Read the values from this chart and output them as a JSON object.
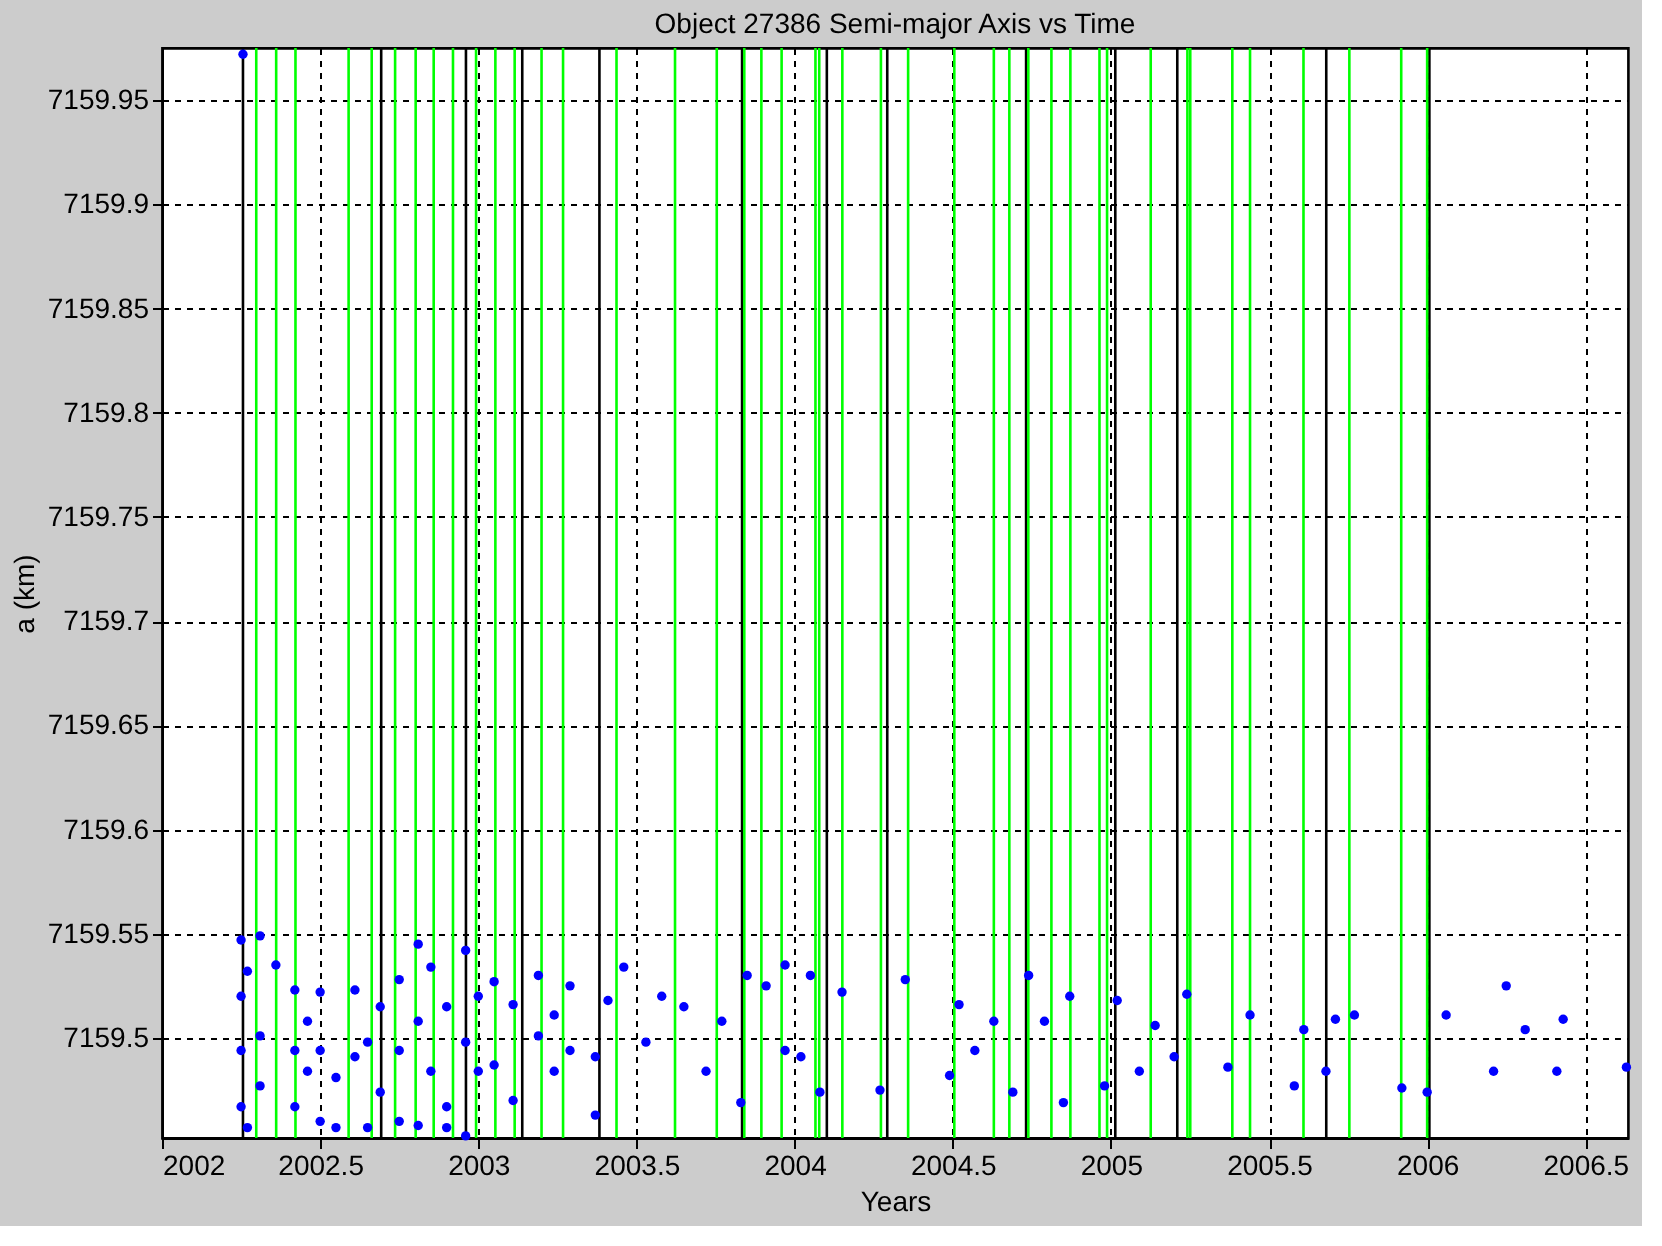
{
  "chart_data": {
    "type": "scatter",
    "title": "Object 27386 Semi-major Axis vs Time",
    "xlabel": "Years",
    "ylabel": "a (km)",
    "xlim": [
      2002,
      2006.635
    ],
    "xticks": [
      2002,
      2002.5,
      2003,
      2003.5,
      2004,
      2004.5,
      2005,
      2005.5,
      2006,
      2006.5
    ],
    "ylim": [
      7159.452,
      7159.975
    ],
    "yticks": [
      7159.5,
      7159.55,
      7159.6,
      7159.65,
      7159.7,
      7159.75,
      7159.8,
      7159.85,
      7159.9,
      7159.95
    ],
    "grid": true,
    "marker": "circle",
    "series": [
      {
        "color": "#0000ff",
        "x": [
          2002.256,
          2002.25,
          2002.25,
          2002.25,
          2002.25,
          2002.27,
          2002.27,
          2002.31,
          2002.31,
          2002.31,
          2002.36,
          2002.42,
          2002.42,
          2002.42,
          2002.46,
          2002.46,
          2002.5,
          2002.5,
          2002.5,
          2002.55,
          2002.55,
          2002.61,
          2002.61,
          2002.65,
          2002.65,
          2002.69,
          2002.69,
          2002.75,
          2002.75,
          2002.75,
          2002.81,
          2002.81,
          2002.81,
          2002.85,
          2002.85,
          2002.9,
          2002.9,
          2002.9,
          2002.96,
          2002.96,
          2002.96,
          2003.0,
          2003.0,
          2003.05,
          2003.05,
          2003.11,
          2003.11,
          2003.19,
          2003.19,
          2003.24,
          2003.24,
          2003.29,
          2003.29,
          2003.37,
          2003.37,
          2003.41,
          2003.46,
          2003.53,
          2003.58,
          2003.65,
          2003.72,
          2003.77,
          2003.83,
          2003.85,
          2003.91,
          2003.97,
          2003.97,
          2004.02,
          2004.05,
          2004.08,
          2004.15,
          2004.27,
          2004.35,
          2004.49,
          2004.52,
          2004.57,
          2004.63,
          2004.69,
          2004.74,
          2004.79,
          2004.85,
          2004.87,
          2004.98,
          2005.02,
          2005.09,
          2005.14,
          2005.2,
          2005.24,
          2005.37,
          2005.44,
          2005.58,
          2005.61,
          2005.68,
          2005.71,
          2005.77,
          2005.92,
          2006.0,
          2006.06,
          2006.21,
          2006.25,
          2006.31,
          2006.41,
          2006.43,
          2006.63
        ],
        "values": [
          7159.972,
          7159.547,
          7159.52,
          7159.494,
          7159.467,
          7159.457,
          7159.532,
          7159.549,
          7159.501,
          7159.477,
          7159.535,
          7159.523,
          7159.494,
          7159.467,
          7159.508,
          7159.484,
          7159.522,
          7159.494,
          7159.46,
          7159.481,
          7159.457,
          7159.523,
          7159.491,
          7159.457,
          7159.498,
          7159.515,
          7159.474,
          7159.528,
          7159.494,
          7159.46,
          7159.545,
          7159.508,
          7159.458,
          7159.534,
          7159.484,
          7159.515,
          7159.467,
          7159.457,
          7159.542,
          7159.498,
          7159.453,
          7159.52,
          7159.484,
          7159.527,
          7159.487,
          7159.516,
          7159.47,
          7159.53,
          7159.501,
          7159.511,
          7159.484,
          7159.525,
          7159.494,
          7159.463,
          7159.491,
          7159.518,
          7159.534,
          7159.498,
          7159.52,
          7159.515,
          7159.484,
          7159.508,
          7159.469,
          7159.53,
          7159.525,
          7159.535,
          7159.494,
          7159.491,
          7159.53,
          7159.474,
          7159.522,
          7159.475,
          7159.528,
          7159.482,
          7159.516,
          7159.494,
          7159.508,
          7159.474,
          7159.53,
          7159.508,
          7159.469,
          7159.52,
          7159.477,
          7159.518,
          7159.484,
          7159.506,
          7159.491,
          7159.521,
          7159.486,
          7159.511,
          7159.477,
          7159.504,
          7159.484,
          7159.509,
          7159.511,
          7159.476,
          7159.474,
          7159.511,
          7159.484,
          7159.525,
          7159.504,
          7159.484,
          7159.509,
          7159.486
        ]
      }
    ],
    "ref_lines": [
      {
        "axis": "x",
        "value": 2002.256,
        "color": "#000000"
      },
      {
        "axis": "x",
        "value": 2002.693,
        "color": "#000000"
      },
      {
        "axis": "x",
        "value": 2002.961,
        "color": "#000000"
      },
      {
        "axis": "x",
        "value": 2003.139,
        "color": "#000000"
      },
      {
        "axis": "x",
        "value": 2003.383,
        "color": "#000000"
      },
      {
        "axis": "x",
        "value": 2003.834,
        "color": "#000000"
      },
      {
        "axis": "x",
        "value": 2004.102,
        "color": "#000000"
      },
      {
        "axis": "x",
        "value": 2004.293,
        "color": "#000000"
      },
      {
        "axis": "x",
        "value": 2004.732,
        "color": "#000000"
      },
      {
        "axis": "x",
        "value": 2005.014,
        "color": "#000000"
      },
      {
        "axis": "x",
        "value": 2005.21,
        "color": "#000000"
      },
      {
        "axis": "x",
        "value": 2005.681,
        "color": "#000000"
      },
      {
        "axis": "x",
        "value": 2006.007,
        "color": "#000000"
      },
      {
        "axis": "x",
        "value": 2002.298,
        "color": "#00ff00"
      },
      {
        "axis": "x",
        "value": 2002.361,
        "color": "#00ff00"
      },
      {
        "axis": "x",
        "value": 2002.422,
        "color": "#00ff00"
      },
      {
        "axis": "x",
        "value": 2002.59,
        "color": "#00ff00"
      },
      {
        "axis": "x",
        "value": 2002.663,
        "color": "#00ff00"
      },
      {
        "axis": "x",
        "value": 2002.737,
        "color": "#00ff00"
      },
      {
        "axis": "x",
        "value": 2002.802,
        "color": "#00ff00"
      },
      {
        "axis": "x",
        "value": 2002.859,
        "color": "#00ff00"
      },
      {
        "axis": "x",
        "value": 2002.92,
        "color": "#00ff00"
      },
      {
        "axis": "x",
        "value": 2002.993,
        "color": "#00ff00"
      },
      {
        "axis": "x",
        "value": 2003.054,
        "color": "#00ff00"
      },
      {
        "axis": "x",
        "value": 2003.115,
        "color": "#00ff00"
      },
      {
        "axis": "x",
        "value": 2003.2,
        "color": "#00ff00"
      },
      {
        "axis": "x",
        "value": 2003.268,
        "color": "#00ff00"
      },
      {
        "axis": "x",
        "value": 2003.437,
        "color": "#00ff00"
      },
      {
        "axis": "x",
        "value": 2003.622,
        "color": "#00ff00"
      },
      {
        "axis": "x",
        "value": 2003.754,
        "color": "#00ff00"
      },
      {
        "axis": "x",
        "value": 2003.841,
        "color": "#00ff00"
      },
      {
        "axis": "x",
        "value": 2003.895,
        "color": "#00ff00"
      },
      {
        "axis": "x",
        "value": 2003.959,
        "color": "#00ff00"
      },
      {
        "axis": "x",
        "value": 2004.066,
        "color": "#00ff00"
      },
      {
        "axis": "x",
        "value": 2004.078,
        "color": "#00ff00"
      },
      {
        "axis": "x",
        "value": 2004.151,
        "color": "#00ff00"
      },
      {
        "axis": "x",
        "value": 2004.273,
        "color": "#00ff00"
      },
      {
        "axis": "x",
        "value": 2004.359,
        "color": "#00ff00"
      },
      {
        "axis": "x",
        "value": 2004.505,
        "color": "#00ff00"
      },
      {
        "axis": "x",
        "value": 2004.63,
        "color": "#00ff00"
      },
      {
        "axis": "x",
        "value": 2004.679,
        "color": "#00ff00"
      },
      {
        "axis": "x",
        "value": 2004.739,
        "color": "#00ff00"
      },
      {
        "axis": "x",
        "value": 2004.812,
        "color": "#00ff00"
      },
      {
        "axis": "x",
        "value": 2004.872,
        "color": "#00ff00"
      },
      {
        "axis": "x",
        "value": 2004.964,
        "color": "#00ff00"
      },
      {
        "axis": "x",
        "value": 2004.988,
        "color": "#00ff00"
      },
      {
        "axis": "x",
        "value": 2005.126,
        "color": "#00ff00"
      },
      {
        "axis": "x",
        "value": 2005.242,
        "color": "#00ff00"
      },
      {
        "axis": "x",
        "value": 2005.251,
        "color": "#00ff00"
      },
      {
        "axis": "x",
        "value": 2005.384,
        "color": "#00ff00"
      },
      {
        "axis": "x",
        "value": 2005.44,
        "color": "#00ff00"
      },
      {
        "axis": "x",
        "value": 2005.609,
        "color": "#00ff00"
      },
      {
        "axis": "x",
        "value": 2005.754,
        "color": "#00ff00"
      },
      {
        "axis": "x",
        "value": 2005.918,
        "color": "#00ff00"
      },
      {
        "axis": "x",
        "value": 2006.0,
        "color": "#00ff00"
      }
    ]
  }
}
